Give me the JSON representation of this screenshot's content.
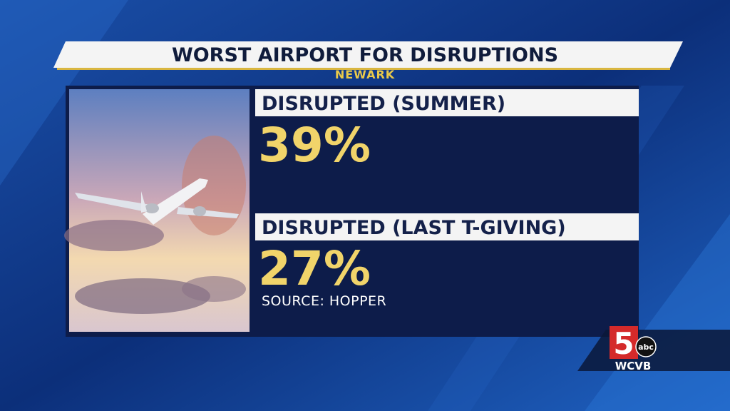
{
  "header": {
    "title": "WORST AIRPORT FOR DISRUPTIONS",
    "subtitle": "NEWARK"
  },
  "stats": [
    {
      "label": "DISRUPTED (SUMMER)",
      "value": "39%"
    },
    {
      "label": "DISRUPTED (LAST T-GIVING)",
      "value": "27%"
    }
  ],
  "source": "SOURCE: HOPPER",
  "logo": {
    "number": "5",
    "network": "abc",
    "station": "WCVB"
  }
}
